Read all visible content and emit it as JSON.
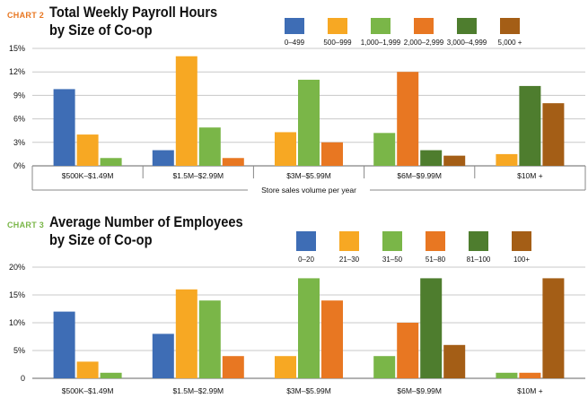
{
  "colors": {
    "label_orange": "#E87722",
    "label_green": "#7AB648"
  },
  "chart_data": [
    {
      "type": "bar",
      "label": "CHART 2",
      "title_line1": "Total Weekly Payroll Hours",
      "title_line2": "by Size of Co-op",
      "xlabel": "Store sales volume per year",
      "ylabel": "",
      "ylim": [
        0,
        15
      ],
      "yticks": [
        "0%",
        "3%",
        "6%",
        "9%",
        "12%",
        "15%"
      ],
      "grid": true,
      "legend_position": "top-right",
      "categories": [
        "$500K–$1.49M",
        "$1.5M–$2.99M",
        "$3M–$5.99M",
        "$6M–$9.99M",
        "$10M +"
      ],
      "series": [
        {
          "name": "0–499",
          "color": "#3E6DB5",
          "values": [
            9.8,
            2,
            null,
            null,
            null
          ]
        },
        {
          "name": "500–999",
          "color": "#F7A823",
          "values": [
            4,
            14,
            4.3,
            null,
            1.5
          ]
        },
        {
          "name": "1,000–1,999",
          "color": "#7AB648",
          "values": [
            1,
            4.9,
            11,
            4.2,
            null
          ]
        },
        {
          "name": "2,000–2,999",
          "color": "#E87722",
          "values": [
            null,
            1,
            3,
            12,
            null
          ]
        },
        {
          "name": "3,000–4,999",
          "color": "#4E7D2E",
          "values": [
            null,
            null,
            null,
            2,
            10.2
          ]
        },
        {
          "name": "5,000 +",
          "color": "#A45E16",
          "values": [
            null,
            null,
            null,
            1.3,
            8
          ]
        }
      ]
    },
    {
      "type": "bar",
      "label": "CHART 3",
      "title_line1": "Average Number of Employees",
      "title_line2": "by Size of Co-op",
      "xlabel": "",
      "ylabel": "",
      "ylim": [
        0,
        20
      ],
      "yticks": [
        "0",
        "5%",
        "10%",
        "15%",
        "20%"
      ],
      "grid": true,
      "legend_position": "top-right",
      "categories": [
        "$500K–$1.49M",
        "$1.5M–$2.99M",
        "$3M–$5.99M",
        "$6M–$9.99M",
        "$10M +"
      ],
      "series": [
        {
          "name": "0–20",
          "color": "#3E6DB5",
          "values": [
            12,
            8,
            null,
            null,
            null
          ]
        },
        {
          "name": "21–30",
          "color": "#F7A823",
          "values": [
            3,
            16,
            4,
            null,
            null
          ]
        },
        {
          "name": "31–50",
          "color": "#7AB648",
          "values": [
            1,
            14,
            18,
            4,
            1
          ]
        },
        {
          "name": "51–80",
          "color": "#E87722",
          "values": [
            null,
            4,
            14,
            10,
            1
          ]
        },
        {
          "name": "81–100",
          "color": "#4E7D2E",
          "values": [
            null,
            null,
            null,
            18,
            null
          ]
        },
        {
          "name": "100+",
          "color": "#A45E16",
          "values": [
            null,
            null,
            null,
            6,
            18
          ]
        }
      ]
    }
  ]
}
